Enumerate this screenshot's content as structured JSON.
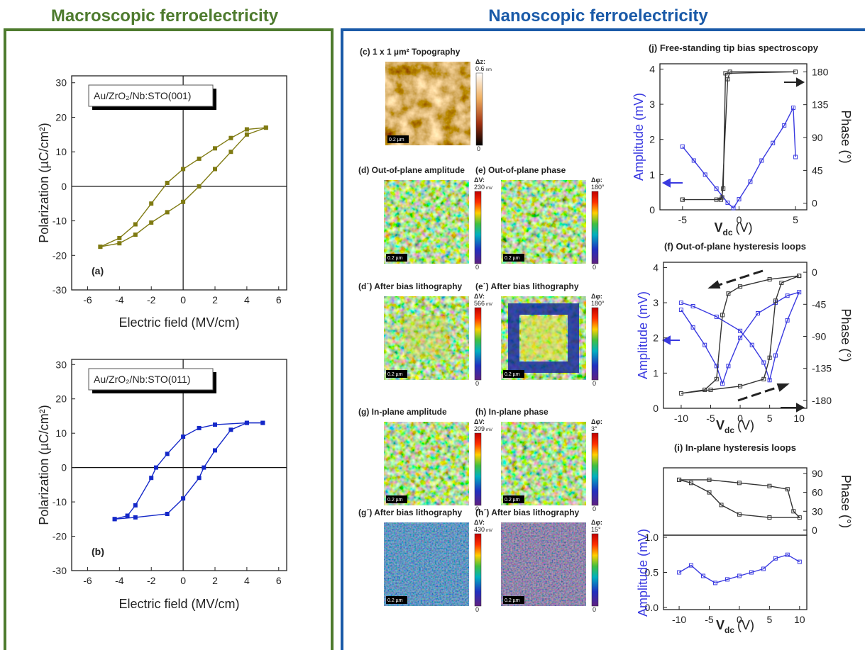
{
  "headers": {
    "left": "Macroscopic ferroelectricity",
    "right": "Nanoscopic ferroelectricity"
  },
  "maps": [
    {
      "title": "(c) 1 x 1 µm² Topography",
      "quantity": "Δz:",
      "max": "0.6",
      "unit": "nm",
      "min": "0",
      "scale": "0.2 µm"
    },
    {
      "title": "(d) Out-of-plane amplitude",
      "quantity": "ΔV:",
      "max": "230",
      "unit": "mV",
      "min": "0",
      "scale": "0.2 µm"
    },
    {
      "title": "(e) Out-of-plane phase",
      "quantity": "Δφ:",
      "max": "180°",
      "min": "0",
      "scale": "0.2 µm"
    },
    {
      "title": "(d´) After bias lithography",
      "quantity": "ΔV:",
      "max": "566",
      "unit": "mV",
      "min": "0",
      "scale": "0.2 µm"
    },
    {
      "title": "(e´) After bias lithography",
      "quantity": "Δφ:",
      "max": "180°",
      "min": "0",
      "scale": "0.2 µm"
    },
    {
      "title": "(g) In-plane amplitude",
      "quantity": "ΔV:",
      "max": "209",
      "unit": "mV",
      "min": "0",
      "scale": "0.2 µm"
    },
    {
      "title": "(h) In-plane phase",
      "quantity": "Δφ:",
      "max": "3°",
      "min": "0",
      "scale": "0.2 µm"
    },
    {
      "title": "(g´) After bias lithography",
      "quantity": "ΔV:",
      "max": "430",
      "unit": "mV",
      "min": "0",
      "scale": "0.2 µm"
    },
    {
      "title": "(h´) After bias lithography",
      "quantity": "Δφ:",
      "max": "15°",
      "min": "0",
      "scale": "0.2 µm"
    }
  ],
  "chart_data": [
    {
      "type": "line",
      "xlabel": "Electric field (MV/cm)",
      "ylabel": "Polarization (µC/cm²)",
      "legend_box": "Au/ZrO₂/Nb:STO(001)",
      "panel_label": "(a)",
      "origin_lines": true,
      "xlim": [
        -7,
        6.5
      ],
      "xticks": [
        -6,
        -4,
        -2,
        0,
        2,
        4,
        6
      ],
      "ylim": [
        -30,
        32
      ],
      "yticks": [
        -30,
        -20,
        -10,
        0,
        10,
        20,
        30
      ],
      "series": [
        {
          "color": "#7f7a12",
          "x": [
            5.2,
            4,
            3,
            2,
            1,
            0,
            -1,
            -2,
            -3,
            -4,
            -5.2
          ],
          "values": [
            17,
            16.5,
            14,
            11,
            8,
            5,
            1,
            -5,
            -11,
            -15,
            -17.5
          ]
        },
        {
          "color": "#7f7a12",
          "x": [
            -5.2,
            -4,
            -3,
            -2,
            -1,
            0,
            1,
            2,
            3,
            4,
            5.2
          ],
          "values": [
            -17.5,
            -16.5,
            -14,
            -10.5,
            -7.5,
            -4.5,
            0,
            5,
            10,
            15,
            17
          ]
        }
      ]
    },
    {
      "type": "line",
      "xlabel": "Electric field (MV/cm)",
      "ylabel": "Polarization (µC/cm²)",
      "legend_box": "Au/ZrO₂/Nb:STO(011)",
      "panel_label": "(b)",
      "origin_lines": true,
      "xlim": [
        -7,
        6.5
      ],
      "xticks": [
        -6,
        -4,
        -2,
        0,
        2,
        4,
        6
      ],
      "ylim": [
        -30,
        31.5
      ],
      "yticks": [
        -30,
        -20,
        -10,
        0,
        10,
        20,
        30
      ],
      "series": [
        {
          "color": "#1428c8",
          "x": [
            5,
            4,
            2,
            1,
            0,
            -1,
            -1.7,
            -2,
            -3,
            -3.5,
            -4.3
          ],
          "values": [
            13,
            13,
            12.5,
            11.5,
            9,
            4,
            0,
            -3,
            -11,
            -14,
            -15
          ]
        },
        {
          "color": "#1428c8",
          "x": [
            -4.3,
            -3,
            -1,
            0,
            1,
            1.3,
            2,
            3,
            4,
            5
          ],
          "values": [
            -15,
            -14.5,
            -13.5,
            -9,
            -3,
            0,
            5,
            11,
            13,
            13
          ]
        }
      ]
    },
    {
      "type": "line",
      "title": "(j) Free-standing tip bias spectroscopy",
      "xlabel": {
        "main": "V",
        "sub": "dc",
        "unit": "(V)"
      },
      "ylabel": "Amplitude (mV)",
      "y2label": "Phase (°)",
      "xlim": [
        -7,
        6
      ],
      "xticks": [
        -5,
        0,
        5
      ],
      "ylim": [
        0,
        4.15
      ],
      "yticks": [
        0,
        1,
        2,
        3,
        4
      ],
      "y2lim": [
        -9,
        191
      ],
      "y2ticks": [
        0,
        45,
        90,
        135,
        180
      ],
      "series": [
        {
          "color": "#3a3ae0",
          "x": [
            -5,
            -4,
            -3,
            -2,
            -1,
            -0.5,
            0,
            1,
            2,
            3,
            4,
            4.8,
            5
          ],
          "values": [
            1.8,
            1.4,
            1.0,
            0.6,
            0.2,
            0.05,
            0.3,
            0.8,
            1.4,
            1.9,
            2.4,
            2.9,
            1.5
          ]
        },
        {
          "color": "#333333",
          "axis": "y2",
          "x": [
            -5,
            -2,
            -1.5,
            -1,
            -0.8,
            5,
            -1.2,
            -1.4,
            -1.6,
            -5
          ],
          "values": [
            5,
            5,
            8,
            170,
            180,
            180,
            178,
            20,
            5,
            5
          ]
        }
      ]
    },
    {
      "type": "line",
      "title": "(f) Out-of-plane hysteresis loops",
      "xlabel": {
        "main": "V",
        "sub": "dc",
        "unit": "(V)"
      },
      "ylabel": "Amplitude (mV)",
      "y2label": "Phase (°)",
      "xlim": [
        -13,
        11.3
      ],
      "xticks": [
        -10,
        -5,
        0,
        5,
        10
      ],
      "ylim": [
        0,
        4.15
      ],
      "yticks": [
        0,
        1,
        2,
        3,
        4
      ],
      "y2lim": [
        -191,
        14
      ],
      "y2ticks": [
        0,
        -45,
        -90,
        -135,
        -180
      ],
      "series": [
        {
          "color": "#3a3ae0",
          "x": [
            -10,
            -8,
            -6,
            -4,
            -3,
            -2,
            0,
            3,
            6,
            8,
            10,
            8,
            6,
            5,
            4,
            2,
            0,
            -4,
            -8,
            -10
          ],
          "values": [
            2.8,
            2.3,
            1.8,
            1.2,
            0.7,
            1.2,
            2.0,
            2.7,
            3.0,
            3.2,
            3.3,
            2.5,
            1.5,
            0.8,
            1.3,
            1.8,
            2.2,
            2.6,
            2.9,
            3.0
          ]
        },
        {
          "color": "#333333",
          "axis": "y2",
          "x": [
            10,
            5,
            0,
            -2,
            -3,
            -4,
            -6,
            -10,
            -5,
            0,
            4,
            5,
            6,
            7,
            10
          ],
          "values": [
            -5,
            -10,
            -20,
            -30,
            -60,
            -150,
            -165,
            -170,
            -165,
            -160,
            -150,
            -120,
            -40,
            -15,
            -5
          ]
        }
      ]
    },
    {
      "type": "line",
      "title": "(i) In-plane hysteresis loops",
      "y2label": "Phase (°)",
      "xlim": [
        -12.6,
        11.2
      ],
      "y2lim": [
        -8,
        99
      ],
      "y2ticks": [
        0,
        30,
        60,
        90
      ],
      "series": [
        {
          "color": "#333333",
          "axis": "y2",
          "x": [
            -10,
            -5,
            0,
            5,
            8,
            9,
            10,
            5,
            0,
            -3,
            -5,
            -8,
            -10
          ],
          "values": [
            80,
            80,
            75,
            70,
            65,
            30,
            20,
            20,
            25,
            40,
            60,
            75,
            80
          ]
        }
      ]
    },
    {
      "type": "line",
      "xlabel": {
        "main": "V",
        "sub": "dc",
        "unit": "(V)"
      },
      "ylabel": "Amplitude (mV)",
      "xlim": [
        -12.6,
        11.2
      ],
      "xticks": [
        -10,
        -5,
        0,
        5,
        10
      ],
      "ylim": [
        -0.03,
        1.03
      ],
      "yticks": [
        {
          "value": 0,
          "label": "0.0"
        },
        {
          "value": 0.5,
          "label": "0.5"
        },
        {
          "value": 1,
          "label": "1.0"
        }
      ],
      "series": [
        {
          "color": "#3a3ae0",
          "x": [
            -10,
            -8,
            -6,
            -4,
            -2,
            0,
            2,
            4,
            6,
            8,
            10
          ],
          "values": [
            0.5,
            0.6,
            0.45,
            0.35,
            0.4,
            0.45,
            0.5,
            0.55,
            0.7,
            0.75,
            0.65
          ]
        }
      ]
    }
  ]
}
